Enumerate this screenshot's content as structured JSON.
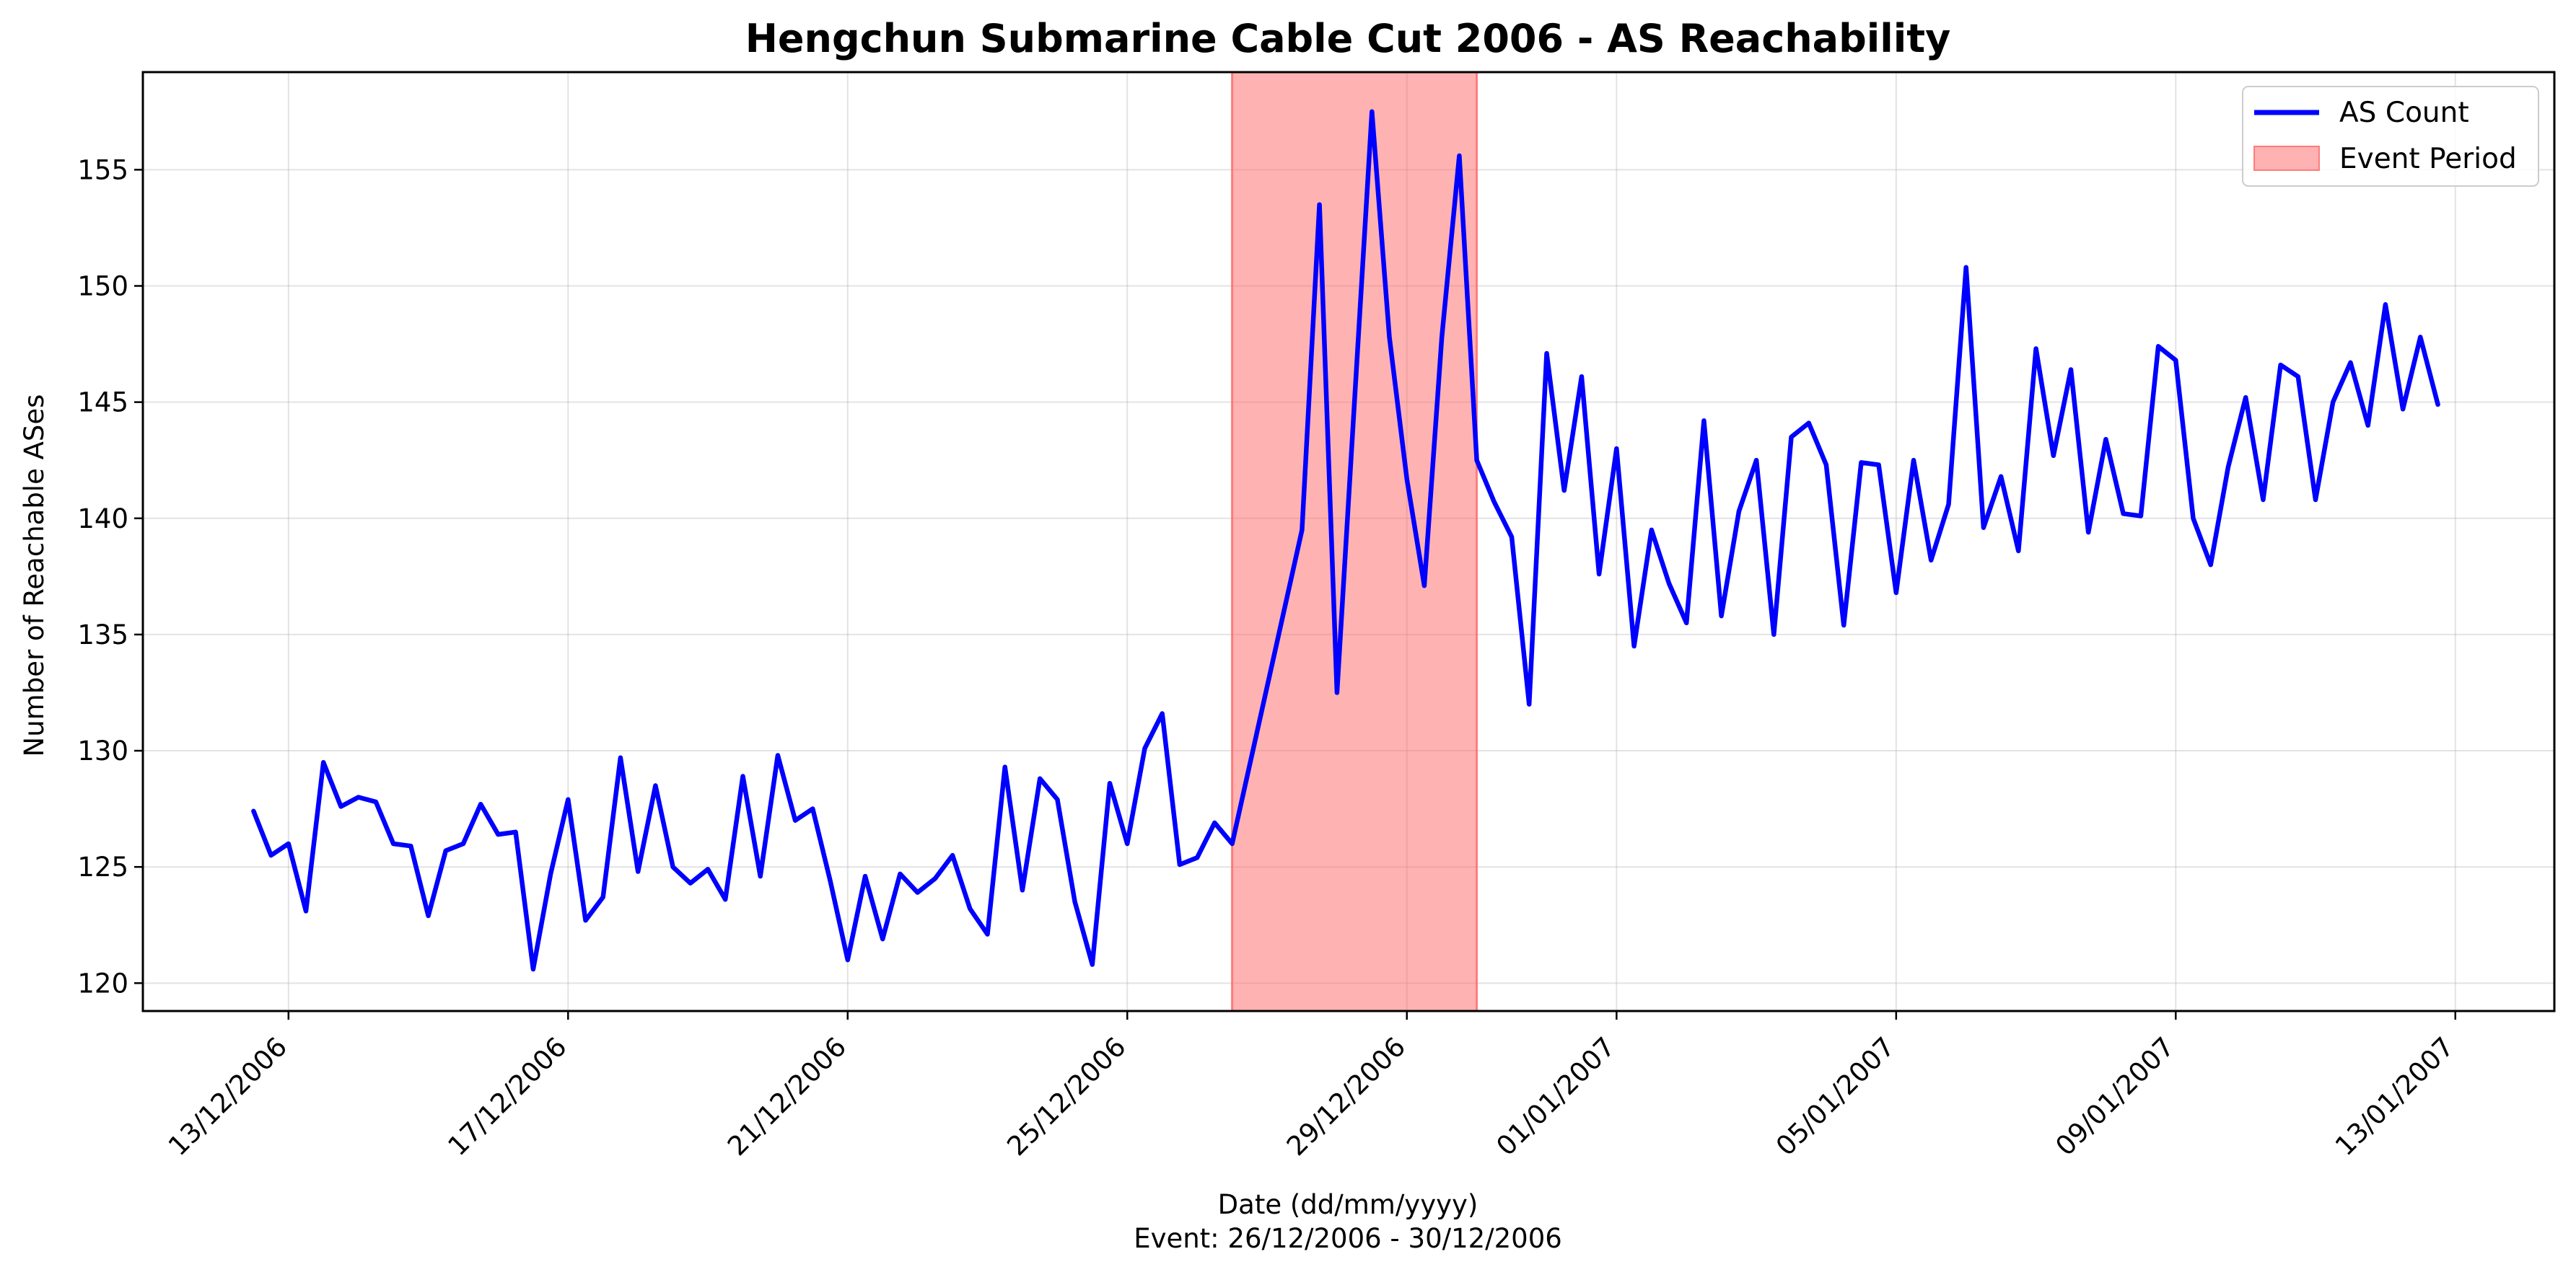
{
  "chart_data": {
    "type": "line",
    "title": "Hengchun Submarine Cable Cut 2006 - AS Reachability",
    "xlabel": "Date (dd/mm/yyyy)",
    "xlabel_note": "Event: 26/12/2006 - 30/12/2006",
    "ylabel": "Number of Reachable ASes",
    "xlim": [
      "2006-12-10T22:00",
      "2007-01-14T10:00"
    ],
    "ylim": [
      118.8,
      159.2
    ],
    "x_ticks": [
      {
        "date": "2006-12-13",
        "label": "13/12/2006"
      },
      {
        "date": "2006-12-17",
        "label": "17/12/2006"
      },
      {
        "date": "2006-12-21",
        "label": "21/12/2006"
      },
      {
        "date": "2006-12-25",
        "label": "25/12/2006"
      },
      {
        "date": "2006-12-29",
        "label": "29/12/2006"
      },
      {
        "date": "2007-01-01",
        "label": "01/01/2007"
      },
      {
        "date": "2007-01-05",
        "label": "05/01/2007"
      },
      {
        "date": "2007-01-09",
        "label": "09/01/2007"
      },
      {
        "date": "2007-01-13",
        "label": "13/01/2007"
      }
    ],
    "y_ticks": [
      {
        "value": 120,
        "label": "120"
      },
      {
        "value": 125,
        "label": "125"
      },
      {
        "value": 130,
        "label": "130"
      },
      {
        "value": 135,
        "label": "135"
      },
      {
        "value": 140,
        "label": "140"
      },
      {
        "value": 145,
        "label": "145"
      },
      {
        "value": 150,
        "label": "150"
      },
      {
        "value": 155,
        "label": "155"
      }
    ],
    "grid": true,
    "legend_position": "top-right",
    "event_period": {
      "start": "2006-12-26T12:00",
      "end": "2006-12-30T00:00",
      "color": "#ff6666",
      "label": "Event Period"
    },
    "series": [
      {
        "name": "AS Count",
        "color": "#0000ff",
        "points": [
          {
            "x": "2006-12-12T12:00",
            "y": 127.4
          },
          {
            "x": "2006-12-12T18:00",
            "y": 125.5
          },
          {
            "x": "2006-12-13T00:00",
            "y": 126.0
          },
          {
            "x": "2006-12-13T06:00",
            "y": 123.1
          },
          {
            "x": "2006-12-13T12:00",
            "y": 129.5
          },
          {
            "x": "2006-12-13T18:00",
            "y": 127.6
          },
          {
            "x": "2006-12-14T00:00",
            "y": 128.0
          },
          {
            "x": "2006-12-14T06:00",
            "y": 127.8
          },
          {
            "x": "2006-12-14T12:00",
            "y": 126.0
          },
          {
            "x": "2006-12-14T18:00",
            "y": 125.9
          },
          {
            "x": "2006-12-15T00:00",
            "y": 122.9
          },
          {
            "x": "2006-12-15T06:00",
            "y": 125.7
          },
          {
            "x": "2006-12-15T12:00",
            "y": 126.0
          },
          {
            "x": "2006-12-15T18:00",
            "y": 127.7
          },
          {
            "x": "2006-12-16T00:00",
            "y": 126.4
          },
          {
            "x": "2006-12-16T06:00",
            "y": 126.5
          },
          {
            "x": "2006-12-16T12:00",
            "y": 120.6
          },
          {
            "x": "2006-12-16T18:00",
            "y": 124.7
          },
          {
            "x": "2006-12-17T00:00",
            "y": 127.9
          },
          {
            "x": "2006-12-17T06:00",
            "y": 122.7
          },
          {
            "x": "2006-12-17T12:00",
            "y": 123.7
          },
          {
            "x": "2006-12-17T18:00",
            "y": 129.7
          },
          {
            "x": "2006-12-18T00:00",
            "y": 124.8
          },
          {
            "x": "2006-12-18T06:00",
            "y": 128.5
          },
          {
            "x": "2006-12-18T12:00",
            "y": 125.0
          },
          {
            "x": "2006-12-18T18:00",
            "y": 124.3
          },
          {
            "x": "2006-12-19T00:00",
            "y": 124.9
          },
          {
            "x": "2006-12-19T06:00",
            "y": 123.6
          },
          {
            "x": "2006-12-19T12:00",
            "y": 128.9
          },
          {
            "x": "2006-12-19T18:00",
            "y": 124.6
          },
          {
            "x": "2006-12-20T00:00",
            "y": 129.8
          },
          {
            "x": "2006-12-20T06:00",
            "y": 127.0
          },
          {
            "x": "2006-12-20T12:00",
            "y": 127.5
          },
          {
            "x": "2006-12-20T18:00",
            "y": 124.4
          },
          {
            "x": "2006-12-21T00:00",
            "y": 121.0
          },
          {
            "x": "2006-12-21T06:00",
            "y": 124.6
          },
          {
            "x": "2006-12-21T12:00",
            "y": 121.9
          },
          {
            "x": "2006-12-21T18:00",
            "y": 124.7
          },
          {
            "x": "2006-12-22T00:00",
            "y": 123.9
          },
          {
            "x": "2006-12-22T06:00",
            "y": 124.5
          },
          {
            "x": "2006-12-22T12:00",
            "y": 125.5
          },
          {
            "x": "2006-12-22T18:00",
            "y": 123.2
          },
          {
            "x": "2006-12-23T00:00",
            "y": 122.1
          },
          {
            "x": "2006-12-23T06:00",
            "y": 129.3
          },
          {
            "x": "2006-12-23T12:00",
            "y": 124.0
          },
          {
            "x": "2006-12-23T18:00",
            "y": 128.8
          },
          {
            "x": "2006-12-24T00:00",
            "y": 127.9
          },
          {
            "x": "2006-12-24T06:00",
            "y": 123.5
          },
          {
            "x": "2006-12-24T12:00",
            "y": 120.8
          },
          {
            "x": "2006-12-24T18:00",
            "y": 128.6
          },
          {
            "x": "2006-12-25T00:00",
            "y": 126.0
          },
          {
            "x": "2006-12-25T06:00",
            "y": 130.1
          },
          {
            "x": "2006-12-25T12:00",
            "y": 131.6
          },
          {
            "x": "2006-12-25T18:00",
            "y": 125.1
          },
          {
            "x": "2006-12-26T00:00",
            "y": 125.4
          },
          {
            "x": "2006-12-26T06:00",
            "y": 126.9
          },
          {
            "x": "2006-12-26T12:00",
            "y": 126.0
          },
          {
            "x": "2006-12-27T12:00",
            "y": 139.5
          },
          {
            "x": "2006-12-27T18:00",
            "y": 153.5
          },
          {
            "x": "2006-12-28T00:00",
            "y": 132.5
          },
          {
            "x": "2006-12-28T06:00",
            "y": 145.0
          },
          {
            "x": "2006-12-28T12:00",
            "y": 157.5
          },
          {
            "x": "2006-12-28T18:00",
            "y": 147.8
          },
          {
            "x": "2006-12-29T00:00",
            "y": 141.7
          },
          {
            "x": "2006-12-29T06:00",
            "y": 137.1
          },
          {
            "x": "2006-12-29T12:00",
            "y": 147.8
          },
          {
            "x": "2006-12-29T18:00",
            "y": 155.6
          },
          {
            "x": "2006-12-30T00:00",
            "y": 142.5
          },
          {
            "x": "2006-12-30T06:00",
            "y": 140.7
          },
          {
            "x": "2006-12-30T12:00",
            "y": 139.2
          },
          {
            "x": "2006-12-30T18:00",
            "y": 132.0
          },
          {
            "x": "2006-12-31T00:00",
            "y": 147.1
          },
          {
            "x": "2006-12-31T06:00",
            "y": 141.2
          },
          {
            "x": "2006-12-31T12:00",
            "y": 146.1
          },
          {
            "x": "2006-12-31T18:00",
            "y": 137.6
          },
          {
            "x": "2007-01-01T00:00",
            "y": 143.0
          },
          {
            "x": "2007-01-01T06:00",
            "y": 134.5
          },
          {
            "x": "2007-01-01T12:00",
            "y": 139.5
          },
          {
            "x": "2007-01-01T18:00",
            "y": 137.2
          },
          {
            "x": "2007-01-02T00:00",
            "y": 135.5
          },
          {
            "x": "2007-01-02T06:00",
            "y": 144.2
          },
          {
            "x": "2007-01-02T12:00",
            "y": 135.8
          },
          {
            "x": "2007-01-02T18:00",
            "y": 140.3
          },
          {
            "x": "2007-01-03T00:00",
            "y": 142.5
          },
          {
            "x": "2007-01-03T06:00",
            "y": 135.0
          },
          {
            "x": "2007-01-03T12:00",
            "y": 143.5
          },
          {
            "x": "2007-01-03T18:00",
            "y": 144.1
          },
          {
            "x": "2007-01-04T00:00",
            "y": 142.3
          },
          {
            "x": "2007-01-04T06:00",
            "y": 135.4
          },
          {
            "x": "2007-01-04T12:00",
            "y": 142.4
          },
          {
            "x": "2007-01-04T18:00",
            "y": 142.3
          },
          {
            "x": "2007-01-05T00:00",
            "y": 136.8
          },
          {
            "x": "2007-01-05T06:00",
            "y": 142.5
          },
          {
            "x": "2007-01-05T12:00",
            "y": 138.2
          },
          {
            "x": "2007-01-05T18:00",
            "y": 140.6
          },
          {
            "x": "2007-01-06T00:00",
            "y": 150.8
          },
          {
            "x": "2007-01-06T06:00",
            "y": 139.6
          },
          {
            "x": "2007-01-06T12:00",
            "y": 141.8
          },
          {
            "x": "2007-01-06T18:00",
            "y": 138.6
          },
          {
            "x": "2007-01-07T00:00",
            "y": 147.3
          },
          {
            "x": "2007-01-07T06:00",
            "y": 142.7
          },
          {
            "x": "2007-01-07T12:00",
            "y": 146.4
          },
          {
            "x": "2007-01-07T18:00",
            "y": 139.4
          },
          {
            "x": "2007-01-08T00:00",
            "y": 143.4
          },
          {
            "x": "2007-01-08T06:00",
            "y": 140.2
          },
          {
            "x": "2007-01-08T12:00",
            "y": 140.1
          },
          {
            "x": "2007-01-08T18:00",
            "y": 147.4
          },
          {
            "x": "2007-01-09T00:00",
            "y": 146.8
          },
          {
            "x": "2007-01-09T06:00",
            "y": 140.0
          },
          {
            "x": "2007-01-09T12:00",
            "y": 138.0
          },
          {
            "x": "2007-01-09T18:00",
            "y": 142.2
          },
          {
            "x": "2007-01-10T00:00",
            "y": 145.2
          },
          {
            "x": "2007-01-10T06:00",
            "y": 140.8
          },
          {
            "x": "2007-01-10T12:00",
            "y": 146.6
          },
          {
            "x": "2007-01-10T18:00",
            "y": 146.1
          },
          {
            "x": "2007-01-11T00:00",
            "y": 140.8
          },
          {
            "x": "2007-01-11T06:00",
            "y": 145.0
          },
          {
            "x": "2007-01-11T12:00",
            "y": 146.7
          },
          {
            "x": "2007-01-11T18:00",
            "y": 144.0
          },
          {
            "x": "2007-01-12T00:00",
            "y": 149.2
          },
          {
            "x": "2007-01-12T06:00",
            "y": 144.7
          },
          {
            "x": "2007-01-12T12:00",
            "y": 147.8
          },
          {
            "x": "2007-01-12T18:00",
            "y": 144.9
          }
        ]
      }
    ]
  }
}
